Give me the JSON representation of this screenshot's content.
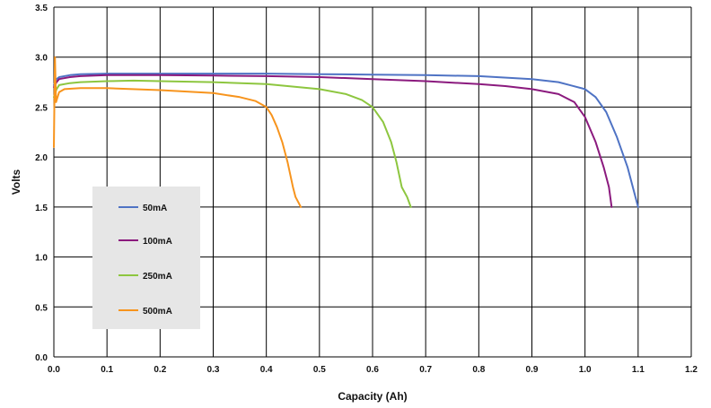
{
  "chart_data": {
    "type": "line",
    "title": "",
    "xlabel": "Capacity (Ah)",
    "ylabel": "Volts",
    "xlim": [
      0,
      1.2
    ],
    "ylim": [
      0,
      3.5
    ],
    "xticks": [
      "0.0",
      "0.1",
      "0.2",
      "0.3",
      "0.4",
      "0.5",
      "0.6",
      "0.7",
      "0.8",
      "0.9",
      "1.0",
      "1.1",
      "1.2"
    ],
    "yticks": [
      "0.0",
      "0.5",
      "1.0",
      "1.5",
      "2.0",
      "2.5",
      "3.0",
      "3.5"
    ],
    "grid": true,
    "legend_position": "lower-left",
    "series": [
      {
        "name": "50mA",
        "color": "#4f73c4",
        "x": [
          0,
          0.005,
          0.01,
          0.03,
          0.05,
          0.1,
          0.2,
          0.3,
          0.4,
          0.5,
          0.6,
          0.7,
          0.8,
          0.9,
          0.95,
          1.0,
          1.02,
          1.04,
          1.06,
          1.08,
          1.09,
          1.1
        ],
        "y": [
          2.72,
          2.78,
          2.8,
          2.82,
          2.83,
          2.835,
          2.835,
          2.835,
          2.835,
          2.83,
          2.825,
          2.82,
          2.81,
          2.78,
          2.75,
          2.68,
          2.6,
          2.45,
          2.2,
          1.9,
          1.7,
          1.5
        ]
      },
      {
        "name": "100mA",
        "color": "#8b1a7e",
        "x": [
          0,
          0.005,
          0.01,
          0.03,
          0.05,
          0.1,
          0.2,
          0.3,
          0.4,
          0.5,
          0.6,
          0.7,
          0.8,
          0.85,
          0.9,
          0.95,
          0.98,
          1.0,
          1.02,
          1.035,
          1.045,
          1.05
        ],
        "y": [
          2.7,
          2.75,
          2.78,
          2.8,
          2.81,
          2.82,
          2.82,
          2.815,
          2.81,
          2.8,
          2.78,
          2.76,
          2.73,
          2.71,
          2.68,
          2.63,
          2.55,
          2.4,
          2.15,
          1.9,
          1.7,
          1.5
        ]
      },
      {
        "name": "250mA",
        "color": "#8dc63f",
        "x": [
          0,
          0.005,
          0.01,
          0.03,
          0.05,
          0.1,
          0.15,
          0.2,
          0.3,
          0.4,
          0.5,
          0.55,
          0.58,
          0.6,
          0.62,
          0.635,
          0.645,
          0.655,
          0.665,
          0.672
        ],
        "y": [
          2.6,
          2.68,
          2.72,
          2.74,
          2.75,
          2.76,
          2.765,
          2.76,
          2.75,
          2.73,
          2.68,
          2.63,
          2.57,
          2.5,
          2.35,
          2.15,
          1.95,
          1.7,
          1.6,
          1.5
        ]
      },
      {
        "name": "500mA",
        "color": "#f7941d",
        "x": [
          0,
          0.002,
          0.004,
          0.007,
          0.01,
          0.02,
          0.05,
          0.1,
          0.2,
          0.3,
          0.35,
          0.38,
          0.4,
          0.41,
          0.42,
          0.43,
          0.44,
          0.45,
          0.455,
          0.46,
          0.465
        ],
        "y": [
          2.1,
          3.0,
          2.55,
          2.6,
          2.65,
          2.68,
          2.69,
          2.69,
          2.67,
          2.64,
          2.6,
          2.56,
          2.5,
          2.42,
          2.3,
          2.15,
          1.95,
          1.7,
          1.6,
          1.55,
          1.5
        ]
      }
    ]
  }
}
